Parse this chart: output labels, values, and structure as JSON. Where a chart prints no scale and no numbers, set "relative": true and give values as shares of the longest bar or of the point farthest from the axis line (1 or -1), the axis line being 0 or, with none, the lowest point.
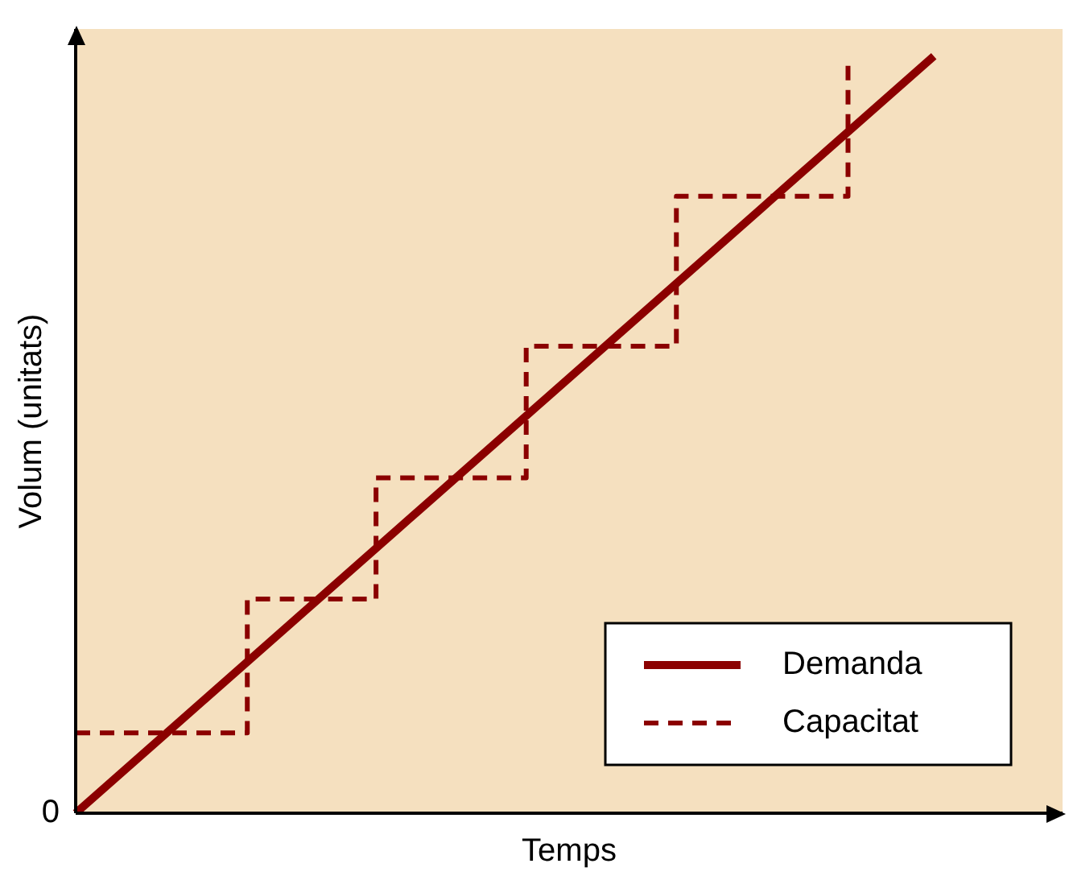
{
  "chart_data": {
    "type": "line",
    "relative": true,
    "xlabel": "Temps",
    "ylabel": "Volum (unitats)",
    "annotations": [
      "0"
    ],
    "legend": "bottom right",
    "marker": "none",
    "categories": [
      null,
      null,
      null,
      null,
      null,
      null,
      null,
      null,
      null,
      null,
      null,
      null,
      null,
      null,
      null,
      null,
      null,
      null,
      null,
      null,
      null,
      null,
      null,
      null,
      null,
      null,
      null,
      null,
      null,
      null,
      null,
      null,
      null,
      null,
      null,
      null,
      null,
      null,
      null,
      null,
      null,
      null,
      null,
      null,
      null,
      null,
      null
    ],
    "series": [
      {
        "name": "Demanda",
        "color": "#8b0000",
        "line_style": "solid",
        "values": [
          0,
          0.025,
          0.05,
          0.075,
          0.1,
          0.125,
          0.15,
          0.175,
          0.2,
          0.225,
          0.25,
          0.275,
          0.3,
          0.325,
          0.35,
          0.375,
          0.4,
          0.425,
          0.45,
          0.475,
          0.5,
          0.525,
          0.55,
          0.575,
          0.6,
          0.625,
          0.65,
          0.675,
          0.7,
          0.725,
          0.75,
          0.775,
          0.8,
          0.825,
          0.85,
          0.875,
          0.9,
          0.925,
          0.95,
          0.975,
          1,
          null,
          null,
          null,
          null,
          null,
          null
        ]
      },
      {
        "name": "Capacitat",
        "type": "step",
        "color": "#8b0000",
        "line_style": "dashed",
        "values": [
          0.106,
          0.106,
          0.106,
          0.106,
          0.106,
          0.106,
          0.106,
          0.106,
          0.283,
          0.283,
          0.283,
          0.283,
          0.283,
          0.283,
          0.443,
          0.443,
          0.443,
          0.443,
          0.443,
          0.443,
          0.443,
          0.617,
          0.617,
          0.617,
          0.617,
          0.617,
          0.617,
          0.617,
          0.815,
          0.815,
          0.815,
          0.815,
          0.815,
          0.815,
          0.815,
          0.815,
          1,
          null,
          null,
          null,
          null,
          null,
          null,
          null,
          null,
          null,
          null
        ]
      }
    ]
  }
}
